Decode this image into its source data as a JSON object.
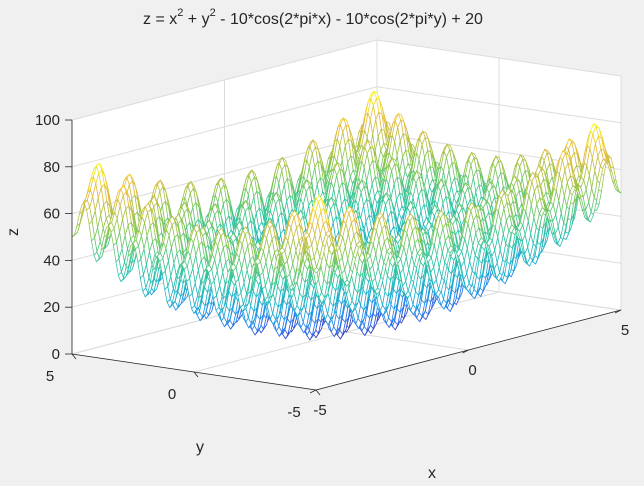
{
  "chart_data": {
    "type": "surface-mesh",
    "title": {
      "base": "z =  x",
      "sup1": "2",
      "mid": " + y",
      "sup2": "2",
      "rest": " - 10*cos(2*pi*x) - 10*cos(2*pi*y) + 20"
    },
    "function": "x^2 + y^2 - 10*cos(2*pi*x) - 10*cos(2*pi*y) + 20",
    "xlabel": "x",
    "ylabel": "y",
    "zlabel": "z",
    "xlim": [
      -5,
      5
    ],
    "ylim": [
      -5,
      5
    ],
    "zlim": [
      0,
      100
    ],
    "xticks": [
      -5,
      0,
      5
    ],
    "yticks": [
      -5,
      0,
      5
    ],
    "zticks": [
      0,
      20,
      40,
      60,
      80,
      100
    ],
    "xtick_labels": [
      "-5",
      "0",
      "5"
    ],
    "ytick_labels": [
      "-5",
      "0",
      "5"
    ],
    "ztick_labels": [
      "0",
      "20",
      "40",
      "60",
      "80",
      "100"
    ],
    "grid": true,
    "colormap": "parula",
    "colormap_colors": [
      "#3e26a8",
      "#2c76f0",
      "#1aa9d5",
      "#2ec5a5",
      "#8dc64a",
      "#e5b93e",
      "#f9fb15"
    ]
  },
  "colors": {
    "figure_background": "#f0f0f0",
    "axes_background": "#ffffff",
    "axis_color": "#262626",
    "grid_color": "#dcdcdc"
  }
}
